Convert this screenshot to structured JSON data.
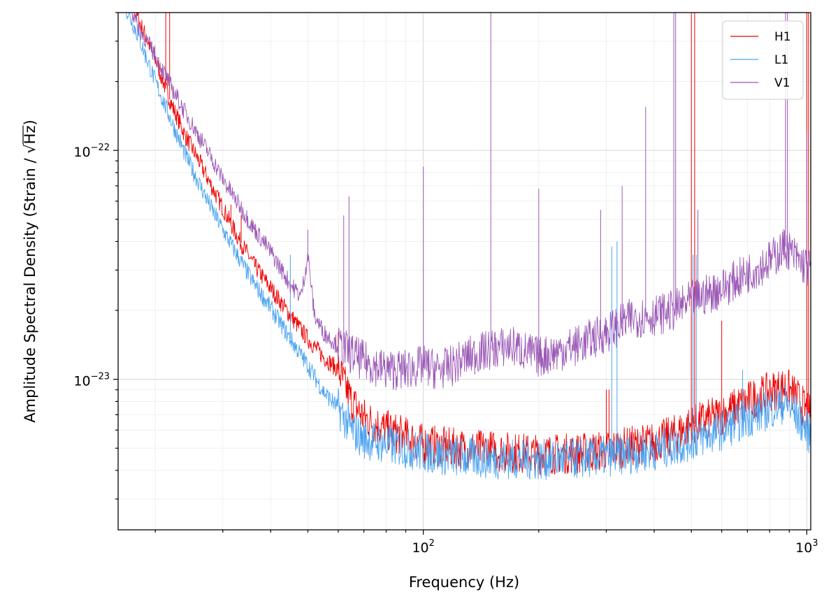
{
  "chart_data": {
    "type": "line",
    "xlabel": "Frequency (Hz)",
    "ylabel": "Amplitude Spectral Density (Strain / √Hz)",
    "ylabel_parts": {
      "prefix": "Amplitude Spectral Density (Strain / ",
      "radical": "√",
      "radicand": "Hz",
      "suffix": ")"
    },
    "x_scale": "log",
    "y_scale": "log",
    "xlim": [
      16,
      1024
    ],
    "ylim": [
      2.2e-24,
      4e-22
    ],
    "grid": true,
    "legend_position": "top-right",
    "x_major_ticks": [
      {
        "value": 100,
        "base": "10",
        "exp": "2"
      },
      {
        "value": 1000,
        "base": "10",
        "exp": "3"
      }
    ],
    "y_major_ticks": [
      {
        "value": 1e-23,
        "base": "10",
        "exp": "−23"
      },
      {
        "value": 1e-22,
        "base": "10",
        "exp": "−22"
      }
    ],
    "series": [
      {
        "name": "H1",
        "color": "#ee0000",
        "points": [
          [
            16,
            6e-22
          ],
          [
            18,
            3.8e-22
          ],
          [
            20,
            2.5e-22
          ],
          [
            22,
            1.6e-22
          ],
          [
            24,
            1.15e-22
          ],
          [
            26,
            9e-23
          ],
          [
            28,
            7e-23
          ],
          [
            30,
            5.6e-23
          ],
          [
            33,
            4.1e-23
          ],
          [
            36,
            3.2e-23
          ],
          [
            40,
            2.5e-23
          ],
          [
            45,
            1.9e-23
          ],
          [
            50,
            1.5e-23
          ],
          [
            55,
            1.25e-23
          ],
          [
            60,
            1.1e-23
          ],
          [
            65,
            8e-24
          ],
          [
            70,
            6.8e-24
          ],
          [
            80,
            6e-24
          ],
          [
            90,
            5.6e-24
          ],
          [
            100,
            5.2e-24
          ],
          [
            120,
            5e-24
          ],
          [
            150,
            4.9e-24
          ],
          [
            180,
            4.75e-24
          ],
          [
            200,
            4.7e-24
          ],
          [
            250,
            4.75e-24
          ],
          [
            300,
            4.9e-24
          ],
          [
            350,
            5.1e-24
          ],
          [
            400,
            5.3e-24
          ],
          [
            450,
            5.7e-24
          ],
          [
            500,
            6.3e-24
          ],
          [
            600,
            7e-24
          ],
          [
            700,
            8e-24
          ],
          [
            800,
            8.8e-24
          ],
          [
            880,
            9.3e-24
          ],
          [
            950,
            8.2e-24
          ],
          [
            1000,
            7.2e-24
          ],
          [
            1024,
            7e-24
          ]
        ],
        "lines": [
          [
            21.3,
            4e-22
          ],
          [
            21.8,
            4e-22
          ],
          [
            31.5,
            5.8e-23
          ],
          [
            33.5,
            5.2e-23
          ],
          [
            60,
            1.6e-23
          ],
          [
            300,
            9e-24
          ],
          [
            305,
            9e-24
          ],
          [
            500,
            4e-22
          ],
          [
            510,
            4e-22
          ],
          [
            600,
            1.8e-23
          ],
          [
            1000,
            4e-22
          ],
          [
            1010,
            4e-22
          ]
        ]
      },
      {
        "name": "L1",
        "color": "#4aa3f0",
        "points": [
          [
            16,
            5e-22
          ],
          [
            18,
            3.2e-22
          ],
          [
            20,
            2e-22
          ],
          [
            22,
            1.35e-22
          ],
          [
            24,
            9.5e-23
          ],
          [
            26,
            7.2e-23
          ],
          [
            28,
            5.6e-23
          ],
          [
            30,
            4.5e-23
          ],
          [
            33,
            3.4e-23
          ],
          [
            36,
            2.65e-23
          ],
          [
            40,
            2.05e-23
          ],
          [
            45,
            1.5e-23
          ],
          [
            50,
            1.15e-23
          ],
          [
            55,
            8.8e-24
          ],
          [
            60,
            7.5e-24
          ],
          [
            65,
            6e-24
          ],
          [
            70,
            5.5e-24
          ],
          [
            80,
            5.2e-24
          ],
          [
            90,
            5e-24
          ],
          [
            100,
            4.8e-24
          ],
          [
            120,
            4.6e-24
          ],
          [
            150,
            4.5e-24
          ],
          [
            200,
            4.45e-24
          ],
          [
            250,
            4.5e-24
          ],
          [
            300,
            4.6e-24
          ],
          [
            350,
            4.75e-24
          ],
          [
            400,
            4.9e-24
          ],
          [
            450,
            5.1e-24
          ],
          [
            500,
            5.4e-24
          ],
          [
            600,
            6e-24
          ],
          [
            700,
            6.8e-24
          ],
          [
            800,
            7.4e-24
          ],
          [
            880,
            7.9e-24
          ],
          [
            950,
            6.8e-24
          ],
          [
            1000,
            6e-24
          ],
          [
            1024,
            5.7e-24
          ]
        ],
        "lines": [
          [
            45,
            3.5e-23
          ],
          [
            310,
            3.8e-23
          ],
          [
            320,
            4e-23
          ],
          [
            505,
            3.5e-23
          ],
          [
            515,
            3.5e-23
          ],
          [
            680,
            1.1e-23
          ]
        ]
      },
      {
        "name": "V1",
        "color": "#9b59b6",
        "points": [
          [
            16,
            6e-22
          ],
          [
            18,
            3.5e-22
          ],
          [
            20,
            2.6e-22
          ],
          [
            22,
            1.9e-22
          ],
          [
            24,
            1.45e-22
          ],
          [
            26,
            1.15e-22
          ],
          [
            28,
            9.3e-23
          ],
          [
            30,
            7.5e-23
          ],
          [
            33,
            5.8e-23
          ],
          [
            36,
            4.6e-23
          ],
          [
            40,
            3.6e-23
          ],
          [
            45,
            2.6e-23
          ],
          [
            48,
            2.3e-23
          ],
          [
            50,
            3.5e-23
          ],
          [
            52,
            1.9e-23
          ],
          [
            55,
            1.6e-23
          ],
          [
            60,
            1.4e-23
          ],
          [
            70,
            1.2e-23
          ],
          [
            80,
            1.1e-23
          ],
          [
            90,
            1.1e-23
          ],
          [
            100,
            1.15e-23
          ],
          [
            110,
            1.1e-23
          ],
          [
            120,
            1.15e-23
          ],
          [
            130,
            1.25e-23
          ],
          [
            150,
            1.35e-23
          ],
          [
            170,
            1.4e-23
          ],
          [
            200,
            1.25e-23
          ],
          [
            250,
            1.4e-23
          ],
          [
            300,
            1.6e-23
          ],
          [
            350,
            1.85e-23
          ],
          [
            400,
            1.9e-23
          ],
          [
            450,
            2e-23
          ],
          [
            500,
            2.2e-23
          ],
          [
            600,
            2.5e-23
          ],
          [
            700,
            2.9e-23
          ],
          [
            800,
            3.3e-23
          ],
          [
            880,
            3.8e-23
          ],
          [
            950,
            3.3e-23
          ],
          [
            1000,
            3.1e-23
          ],
          [
            1024,
            3e-23
          ]
        ],
        "lines": [
          [
            50,
            4.5e-23
          ],
          [
            62,
            5.2e-23
          ],
          [
            64,
            6.3e-23
          ],
          [
            100,
            8.5e-23
          ],
          [
            150,
            4e-22
          ],
          [
            200,
            6.8e-23
          ],
          [
            290,
            5.5e-23
          ],
          [
            330,
            7e-23
          ],
          [
            380,
            1.55e-22
          ],
          [
            450,
            4e-22
          ],
          [
            455,
            4e-22
          ],
          [
            520,
            5.5e-23
          ],
          [
            880,
            4e-22
          ],
          [
            890,
            4e-22
          ],
          [
            1000,
            1.2e-22
          ]
        ]
      }
    ]
  }
}
